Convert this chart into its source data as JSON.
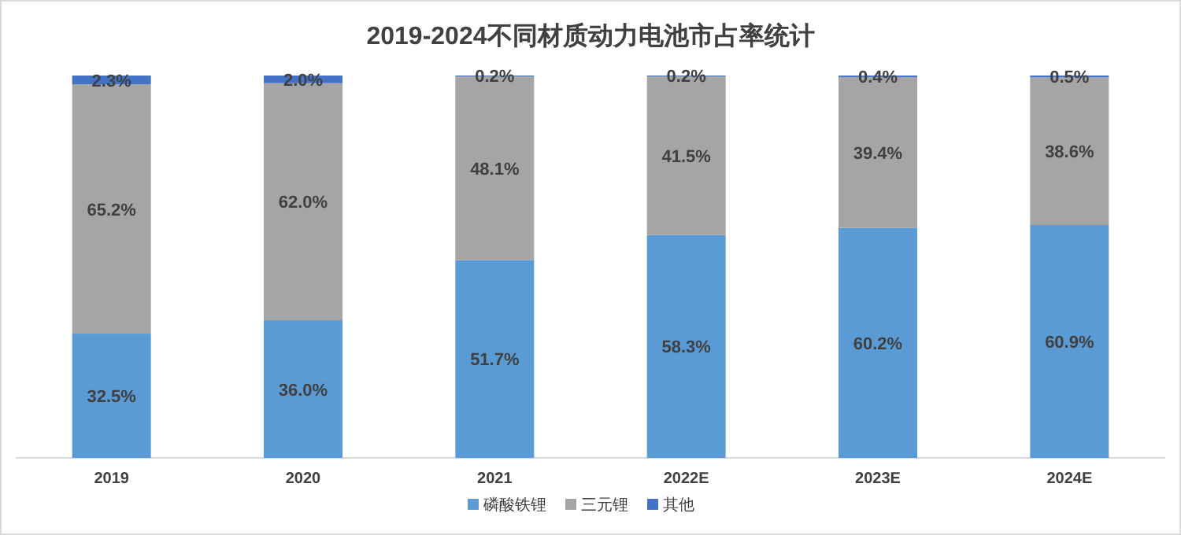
{
  "chart_data": {
    "type": "bar",
    "title": "2019-2024不同材质动力电池市占率统计",
    "categories": [
      "2019",
      "2020",
      "2021",
      "2022E",
      "2023E",
      "2024E"
    ],
    "stacked": true,
    "legend": "bottom",
    "series": [
      {
        "name": "磷酸铁锂",
        "color": "#5b9bd5",
        "values": [
          32.5,
          36.0,
          51.7,
          58.3,
          60.2,
          60.9
        ],
        "value_labels": [
          "32.5%",
          "36.0%",
          "51.7%",
          "58.3%",
          "60.2%",
          "60.9%"
        ]
      },
      {
        "name": "三元锂",
        "color": "#a5a5a5",
        "values": [
          65.2,
          62.0,
          48.1,
          41.5,
          39.4,
          38.6
        ],
        "value_labels": [
          "65.2%",
          "62.0%",
          "48.1%",
          "41.5%",
          "39.4%",
          "38.6%"
        ]
      },
      {
        "name": "其他",
        "color": "#4472c4",
        "values": [
          2.3,
          2.0,
          0.2,
          0.2,
          0.4,
          0.5
        ],
        "value_labels": [
          "2.3%",
          "2.0%",
          "0.2%",
          "0.2%",
          "0.4%",
          "0.5%"
        ]
      }
    ]
  }
}
